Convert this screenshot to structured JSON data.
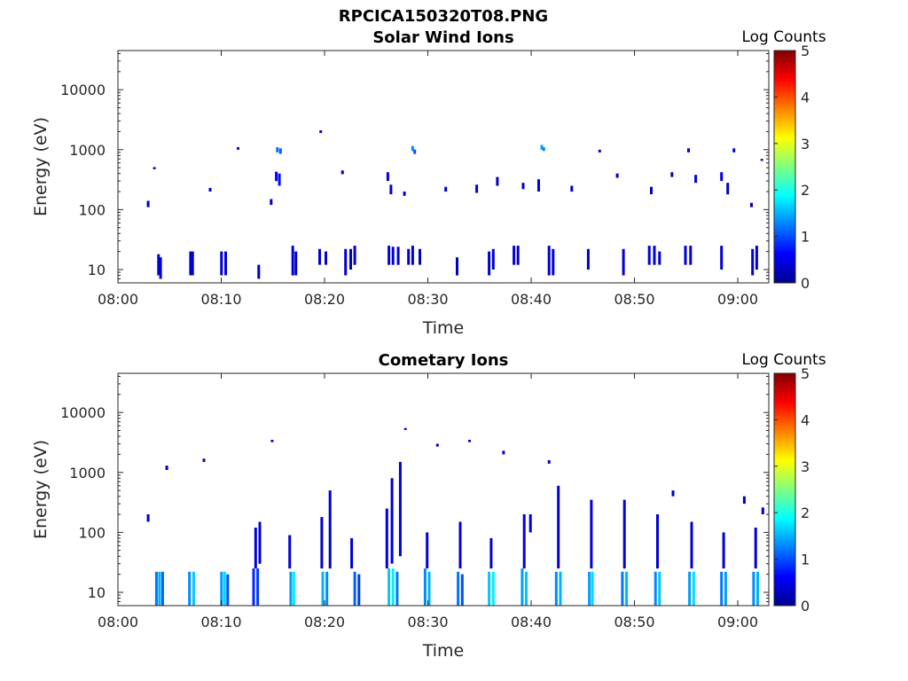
{
  "figure_title": "RPCICA150320T08.PNG",
  "colorscale": [
    "#00008f",
    "#0000ff",
    "#0080ff",
    "#00ffff",
    "#80ff80",
    "#ffff00",
    "#ff8000",
    "#ff0000",
    "#800000"
  ],
  "chart_data": [
    {
      "type": "heatmap",
      "title": "Solar Wind Ions",
      "xlabel": "Time",
      "ylabel": "Energy (eV)",
      "y_scale": "log",
      "xlim": [
        "08:00",
        "09:03"
      ],
      "ylim": [
        6,
        45000
      ],
      "x_ticks": [
        "08:00",
        "08:10",
        "08:20",
        "08:30",
        "08:40",
        "08:50",
        "09:00"
      ],
      "y_ticks": [
        "10",
        "100",
        "1000",
        "10000"
      ],
      "colorbar": {
        "label": "Log Counts",
        "range": [
          0,
          5
        ],
        "ticks": [
          "0",
          "1",
          "2",
          "3",
          "4",
          "5"
        ]
      },
      "grid": false,
      "cells": [
        [
          3.8,
          8,
          18,
          0.4
        ],
        [
          4.0,
          7,
          16,
          0.4
        ],
        [
          6.9,
          8,
          20,
          0.4
        ],
        [
          7.1,
          8,
          20,
          0.3
        ],
        [
          9.9,
          8,
          20,
          0.4
        ],
        [
          10.3,
          8,
          20,
          0.4
        ],
        [
          13.5,
          7,
          12,
          0.3
        ],
        [
          16.8,
          8,
          25,
          0.4
        ],
        [
          17.1,
          8,
          20,
          0.3
        ],
        [
          19.4,
          12,
          22,
          0.4
        ],
        [
          20.0,
          12,
          20,
          0.4
        ],
        [
          21.9,
          8,
          22,
          0.4
        ],
        [
          22.4,
          10,
          22,
          0.3
        ],
        [
          22.8,
          12,
          25,
          0.4
        ],
        [
          26.1,
          12,
          25,
          0.4
        ],
        [
          26.5,
          12,
          24,
          0.4
        ],
        [
          27.0,
          12,
          24,
          0.4
        ],
        [
          28.0,
          12,
          22,
          0.3
        ],
        [
          28.4,
          12,
          25,
          0.4
        ],
        [
          29.1,
          12,
          22,
          0.3
        ],
        [
          32.7,
          8,
          16,
          0.3
        ],
        [
          35.8,
          8,
          20,
          0.4
        ],
        [
          36.2,
          10,
          22,
          0.4
        ],
        [
          38.2,
          12,
          25,
          0.4
        ],
        [
          38.6,
          12,
          25,
          0.3
        ],
        [
          41.6,
          8,
          25,
          0.4
        ],
        [
          42.0,
          8,
          22,
          0.4
        ],
        [
          45.4,
          10,
          22,
          0.3
        ],
        [
          48.8,
          8,
          22,
          0.4
        ],
        [
          51.3,
          12,
          25,
          0.4
        ],
        [
          51.8,
          12,
          25,
          0.4
        ],
        [
          52.3,
          12,
          20,
          0.4
        ],
        [
          54.8,
          12,
          25,
          0.4
        ],
        [
          55.3,
          12,
          25,
          0.4
        ],
        [
          58.3,
          10,
          25,
          0.4
        ],
        [
          61.3,
          8,
          22,
          0.4
        ],
        [
          61.7,
          10,
          25,
          0.4
        ],
        [
          15.2,
          300,
          430,
          0.6
        ],
        [
          15.5,
          250,
          400,
          0.7
        ],
        [
          15.3,
          900,
          1100,
          1.2
        ],
        [
          15.6,
          850,
          1050,
          1.1
        ],
        [
          28.4,
          950,
          1150,
          1.3
        ],
        [
          28.6,
          850,
          1000,
          1.0
        ],
        [
          40.9,
          1000,
          1200,
          1.4
        ],
        [
          41.1,
          950,
          1100,
          1.3
        ],
        [
          58.3,
          300,
          420,
          0.5
        ],
        [
          59.5,
          900,
          1050,
          0.4
        ],
        [
          55.1,
          900,
          1050,
          0.4
        ],
        [
          2.8,
          110,
          140,
          0.3
        ],
        [
          3.4,
          470,
          510,
          0.3
        ],
        [
          8.8,
          200,
          230,
          0.3
        ],
        [
          11.5,
          1000,
          1100,
          0.3
        ],
        [
          14.7,
          120,
          150,
          0.3
        ],
        [
          19.5,
          1900,
          2100,
          0.3
        ],
        [
          21.6,
          390,
          450,
          0.3
        ],
        [
          26.0,
          300,
          420,
          0.4
        ],
        [
          26.3,
          180,
          260,
          0.4
        ],
        [
          27.6,
          170,
          200,
          0.3
        ],
        [
          31.6,
          200,
          240,
          0.3
        ],
        [
          34.6,
          190,
          260,
          0.3
        ],
        [
          36.6,
          250,
          350,
          0.3
        ],
        [
          39.1,
          220,
          280,
          0.3
        ],
        [
          40.6,
          200,
          320,
          0.4
        ],
        [
          43.8,
          200,
          250,
          0.3
        ],
        [
          46.5,
          900,
          1000,
          0.3
        ],
        [
          48.2,
          340,
          400,
          0.3
        ],
        [
          51.5,
          180,
          240,
          0.3
        ],
        [
          53.5,
          350,
          420,
          0.3
        ],
        [
          55.8,
          280,
          380,
          0.4
        ],
        [
          58.9,
          180,
          280,
          0.3
        ],
        [
          61.2,
          110,
          130,
          0.3
        ],
        [
          62.2,
          650,
          700,
          0.3
        ]
      ]
    },
    {
      "type": "heatmap",
      "title": "Cometary Ions",
      "xlabel": "Time",
      "ylabel": "Energy (eV)",
      "y_scale": "log",
      "xlim": [
        "08:00",
        "09:03"
      ],
      "ylim": [
        6,
        45000
      ],
      "x_ticks": [
        "08:00",
        "08:10",
        "08:20",
        "08:30",
        "08:40",
        "08:50",
        "09:00"
      ],
      "y_ticks": [
        "10",
        "100",
        "1000",
        "10000"
      ],
      "colorbar": {
        "label": "Log Counts",
        "range": [
          0,
          5
        ],
        "ticks": [
          "0",
          "1",
          "2",
          "3",
          "4",
          "5"
        ]
      },
      "grid": false,
      "cells": [
        [
          3.6,
          6,
          22,
          1.2
        ],
        [
          3.9,
          6,
          22,
          1.5
        ],
        [
          4.2,
          6,
          22,
          1.1
        ],
        [
          6.8,
          6,
          22,
          1.3
        ],
        [
          7.2,
          6,
          22,
          1.6
        ],
        [
          9.9,
          6,
          22,
          1.4
        ],
        [
          10.2,
          6,
          22,
          1.7
        ],
        [
          10.5,
          6,
          20,
          1.0
        ],
        [
          13.0,
          6,
          25,
          0.8
        ],
        [
          13.4,
          6,
          25,
          0.9
        ],
        [
          16.6,
          6,
          22,
          1.4
        ],
        [
          16.9,
          6,
          22,
          1.8
        ],
        [
          19.7,
          6,
          22,
          1.5
        ],
        [
          20.1,
          6,
          22,
          1.3
        ],
        [
          22.8,
          6,
          22,
          1.1
        ],
        [
          23.2,
          6,
          20,
          0.9
        ],
        [
          26.1,
          6,
          25,
          1.6
        ],
        [
          26.5,
          6,
          25,
          1.8
        ],
        [
          26.9,
          6,
          22,
          1.2
        ],
        [
          29.6,
          6,
          25,
          1.3
        ],
        [
          30.0,
          6,
          22,
          1.5
        ],
        [
          32.8,
          6,
          22,
          1.2
        ],
        [
          33.2,
          6,
          20,
          1.0
        ],
        [
          35.8,
          6,
          22,
          1.6
        ],
        [
          36.2,
          6,
          22,
          1.8
        ],
        [
          39.0,
          6,
          25,
          1.4
        ],
        [
          39.4,
          6,
          22,
          1.6
        ],
        [
          42.3,
          6,
          22,
          1.3
        ],
        [
          42.7,
          6,
          22,
          1.5
        ],
        [
          45.5,
          6,
          22,
          1.4
        ],
        [
          45.8,
          6,
          22,
          1.7
        ],
        [
          48.7,
          6,
          22,
          1.2
        ],
        [
          49.1,
          6,
          22,
          1.5
        ],
        [
          51.9,
          6,
          22,
          1.3
        ],
        [
          52.3,
          6,
          22,
          1.6
        ],
        [
          55.2,
          6,
          22,
          1.4
        ],
        [
          55.6,
          6,
          22,
          1.7
        ],
        [
          58.3,
          6,
          22,
          1.2
        ],
        [
          58.7,
          6,
          22,
          1.4
        ],
        [
          61.4,
          6,
          22,
          1.3
        ],
        [
          61.8,
          6,
          22,
          1.5
        ],
        [
          13.2,
          25,
          120,
          0.4
        ],
        [
          13.6,
          30,
          150,
          0.4
        ],
        [
          16.5,
          25,
          90,
          0.4
        ],
        [
          19.6,
          25,
          180,
          0.4
        ],
        [
          20.4,
          25,
          500,
          0.4
        ],
        [
          22.5,
          25,
          80,
          0.4
        ],
        [
          25.9,
          25,
          250,
          0.4
        ],
        [
          26.4,
          30,
          800,
          0.4
        ],
        [
          27.2,
          40,
          1500,
          0.4
        ],
        [
          29.8,
          25,
          100,
          0.4
        ],
        [
          33.0,
          25,
          150,
          0.4
        ],
        [
          36.0,
          25,
          80,
          0.4
        ],
        [
          39.2,
          25,
          200,
          0.4
        ],
        [
          39.8,
          100,
          200,
          0.4
        ],
        [
          42.5,
          25,
          600,
          0.4
        ],
        [
          45.7,
          25,
          350,
          0.4
        ],
        [
          48.9,
          25,
          350,
          0.4
        ],
        [
          52.1,
          25,
          200,
          0.4
        ],
        [
          55.4,
          25,
          150,
          0.4
        ],
        [
          58.5,
          25,
          100,
          0.4
        ],
        [
          61.6,
          25,
          120,
          0.4
        ],
        [
          14.8,
          3200,
          3500,
          0.3
        ],
        [
          27.7,
          5100,
          5500,
          0.3
        ],
        [
          30.8,
          2700,
          3000,
          0.3
        ],
        [
          33.9,
          3200,
          3500,
          0.3
        ],
        [
          4.6,
          1100,
          1300,
          0.3
        ],
        [
          8.2,
          1500,
          1700,
          0.3
        ],
        [
          2.8,
          150,
          200,
          0.3
        ],
        [
          41.6,
          1400,
          1600,
          0.3
        ],
        [
          37.2,
          2000,
          2300,
          0.3
        ],
        [
          53.6,
          400,
          500,
          0.3
        ],
        [
          60.5,
          300,
          400,
          0.3
        ],
        [
          62.3,
          200,
          260,
          0.3
        ]
      ]
    }
  ]
}
